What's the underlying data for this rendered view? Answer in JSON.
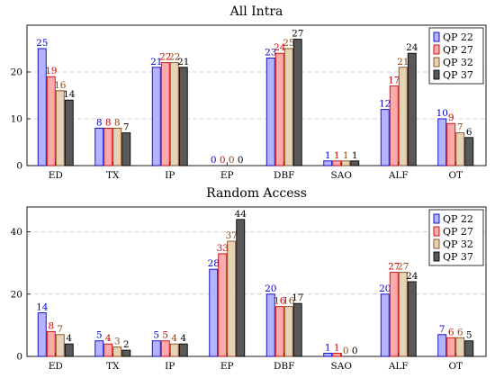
{
  "chart_data": [
    {
      "type": "bar",
      "title": "All Intra",
      "xlabel": "",
      "ylabel": "",
      "ylim": [
        0,
        30
      ],
      "yticks": [
        0,
        10,
        20
      ],
      "grid": "horizontal-dashed",
      "legend_position": "top-right",
      "categories": [
        "ED",
        "TX",
        "IP",
        "EP",
        "DBF",
        "SAO",
        "ALF",
        "OT"
      ],
      "series": [
        {
          "name": "QP 22",
          "color": "#0000cc",
          "fill": "#b3b3ff",
          "values": [
            25,
            8,
            21,
            0,
            23,
            1,
            12,
            10
          ]
        },
        {
          "name": "QP 27",
          "color": "#cc0000",
          "fill": "#ffaaaa",
          "values": [
            19,
            8,
            22,
            0,
            24,
            1,
            17,
            9
          ]
        },
        {
          "name": "QP 32",
          "color": "#8b4513",
          "fill": "#e6d2b8",
          "values": [
            16,
            8,
            22,
            0,
            25,
            1,
            21,
            7
          ]
        },
        {
          "name": "QP 37",
          "color": "#000000",
          "fill": "#595959",
          "values": [
            14,
            7,
            21,
            0,
            27,
            1,
            24,
            6
          ]
        }
      ]
    },
    {
      "type": "bar",
      "title": "Random Access",
      "xlabel": "",
      "ylabel": "",
      "ylim": [
        0,
        48
      ],
      "yticks": [
        0,
        20,
        40
      ],
      "grid": "horizontal-dashed",
      "legend_position": "top-right",
      "categories": [
        "ED",
        "TX",
        "IP",
        "EP",
        "DBF",
        "SAO",
        "ALF",
        "OT"
      ],
      "series": [
        {
          "name": "QP 22",
          "color": "#0000cc",
          "fill": "#b3b3ff",
          "values": [
            14,
            5,
            5,
            28,
            20,
            1,
            20,
            7
          ]
        },
        {
          "name": "QP 27",
          "color": "#cc0000",
          "fill": "#ffaaaa",
          "values": [
            8,
            4,
            5,
            33,
            16,
            1,
            27,
            6
          ]
        },
        {
          "name": "QP 32",
          "color": "#8b4513",
          "fill": "#e6d2b8",
          "values": [
            7,
            3,
            4,
            37,
            16,
            0,
            27,
            6
          ]
        },
        {
          "name": "QP 37",
          "color": "#000000",
          "fill": "#595959",
          "values": [
            4,
            2,
            4,
            44,
            17,
            0,
            24,
            5
          ]
        }
      ]
    }
  ]
}
